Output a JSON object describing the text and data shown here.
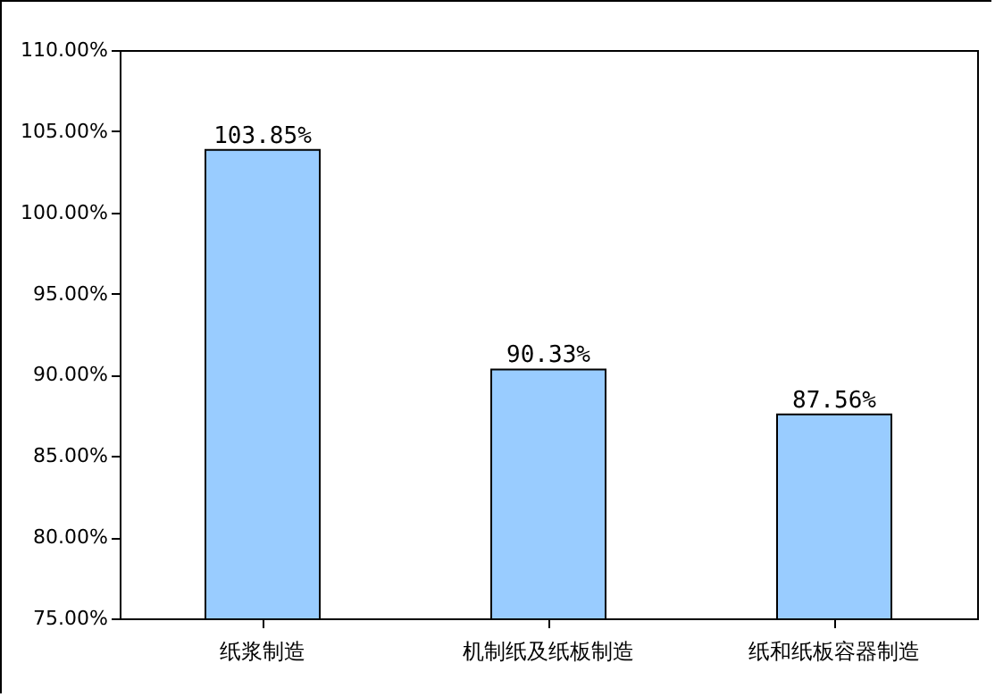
{
  "chart_data": {
    "type": "bar",
    "categories": [
      "纸浆制造",
      "机制纸及纸板制造",
      "纸和纸板容器制造"
    ],
    "values": [
      103.85,
      90.33,
      87.56
    ],
    "color": "#99ccff",
    "value_labels": [
      "103.85%",
      "90.33%",
      "87.56%"
    ],
    "ylim": [
      75,
      110
    ],
    "yticks": [
      {
        "value": 75,
        "label": "75.00%"
      },
      {
        "value": 80,
        "label": "80.00%"
      },
      {
        "value": 85,
        "label": "85.00%"
      },
      {
        "value": 90,
        "label": "90.00%"
      },
      {
        "value": 95,
        "label": "95.00%"
      },
      {
        "value": 100,
        "label": "100.00%"
      },
      {
        "value": 105,
        "label": "105.00%"
      },
      {
        "value": 110,
        "label": "110.00%"
      }
    ],
    "grid": false
  }
}
